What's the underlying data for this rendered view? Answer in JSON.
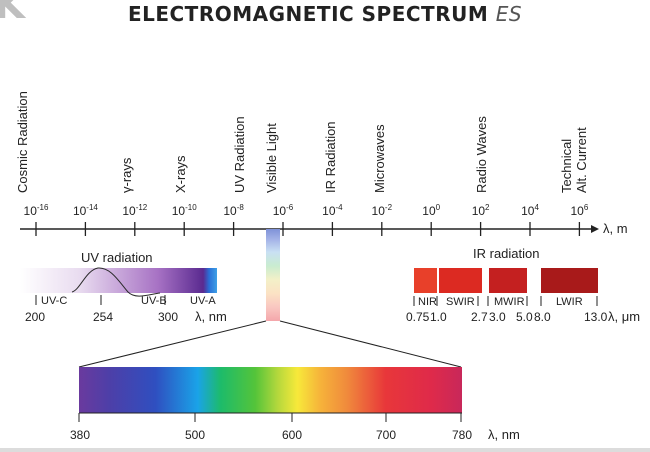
{
  "title": "ELECTROMAGNETIC SPECTRUM",
  "title_suffix": "ES",
  "logo_letter": "K",
  "categories": [
    {
      "label": "Cosmic Radiation"
    },
    {
      "label": "γ-rays"
    },
    {
      "label": "X-rays"
    },
    {
      "label": "UV Radiation"
    },
    {
      "label": "Visible Light"
    },
    {
      "label": "IR Radiation"
    },
    {
      "label": "Microwaves"
    },
    {
      "label": "Radio Waves"
    },
    {
      "label": "Technical",
      "label2": "Alt. Current"
    }
  ],
  "main_axis": {
    "unit": "λ, m",
    "exponents": [
      "-16",
      "-14",
      "-12",
      "-10",
      "-8",
      "-6",
      "-4",
      "-2",
      "0",
      "2",
      "4",
      "6"
    ]
  },
  "uv_inset": {
    "title": "UV radiation",
    "bands": [
      "UV-C",
      "UV-B",
      "UV-A"
    ],
    "ticks": [
      "200",
      "254",
      "300"
    ],
    "unit": "λ, nm"
  },
  "ir_inset": {
    "title": "IR radiation",
    "bands": [
      "NIR",
      "SWIR",
      "MWIR",
      "LWIR"
    ],
    "ticks": [
      "0.75",
      "1.0",
      "2.7",
      "3.0",
      "5.0",
      "8.0",
      "13.0"
    ],
    "unit": "λ, μm",
    "colors": [
      "#e8402a",
      "#dc2a22",
      "#c42020",
      "#a81a1a"
    ]
  },
  "visible_inset": {
    "ticks": [
      "380",
      "500",
      "600",
      "700",
      "780"
    ],
    "unit": "λ, nm"
  },
  "colors": {
    "axis": "#222222",
    "uv_light": "#f3eef8",
    "uv_mid": "#a772c4",
    "uv_dark": "#5a2a90",
    "uv_edge": "#2a6fd6"
  }
}
